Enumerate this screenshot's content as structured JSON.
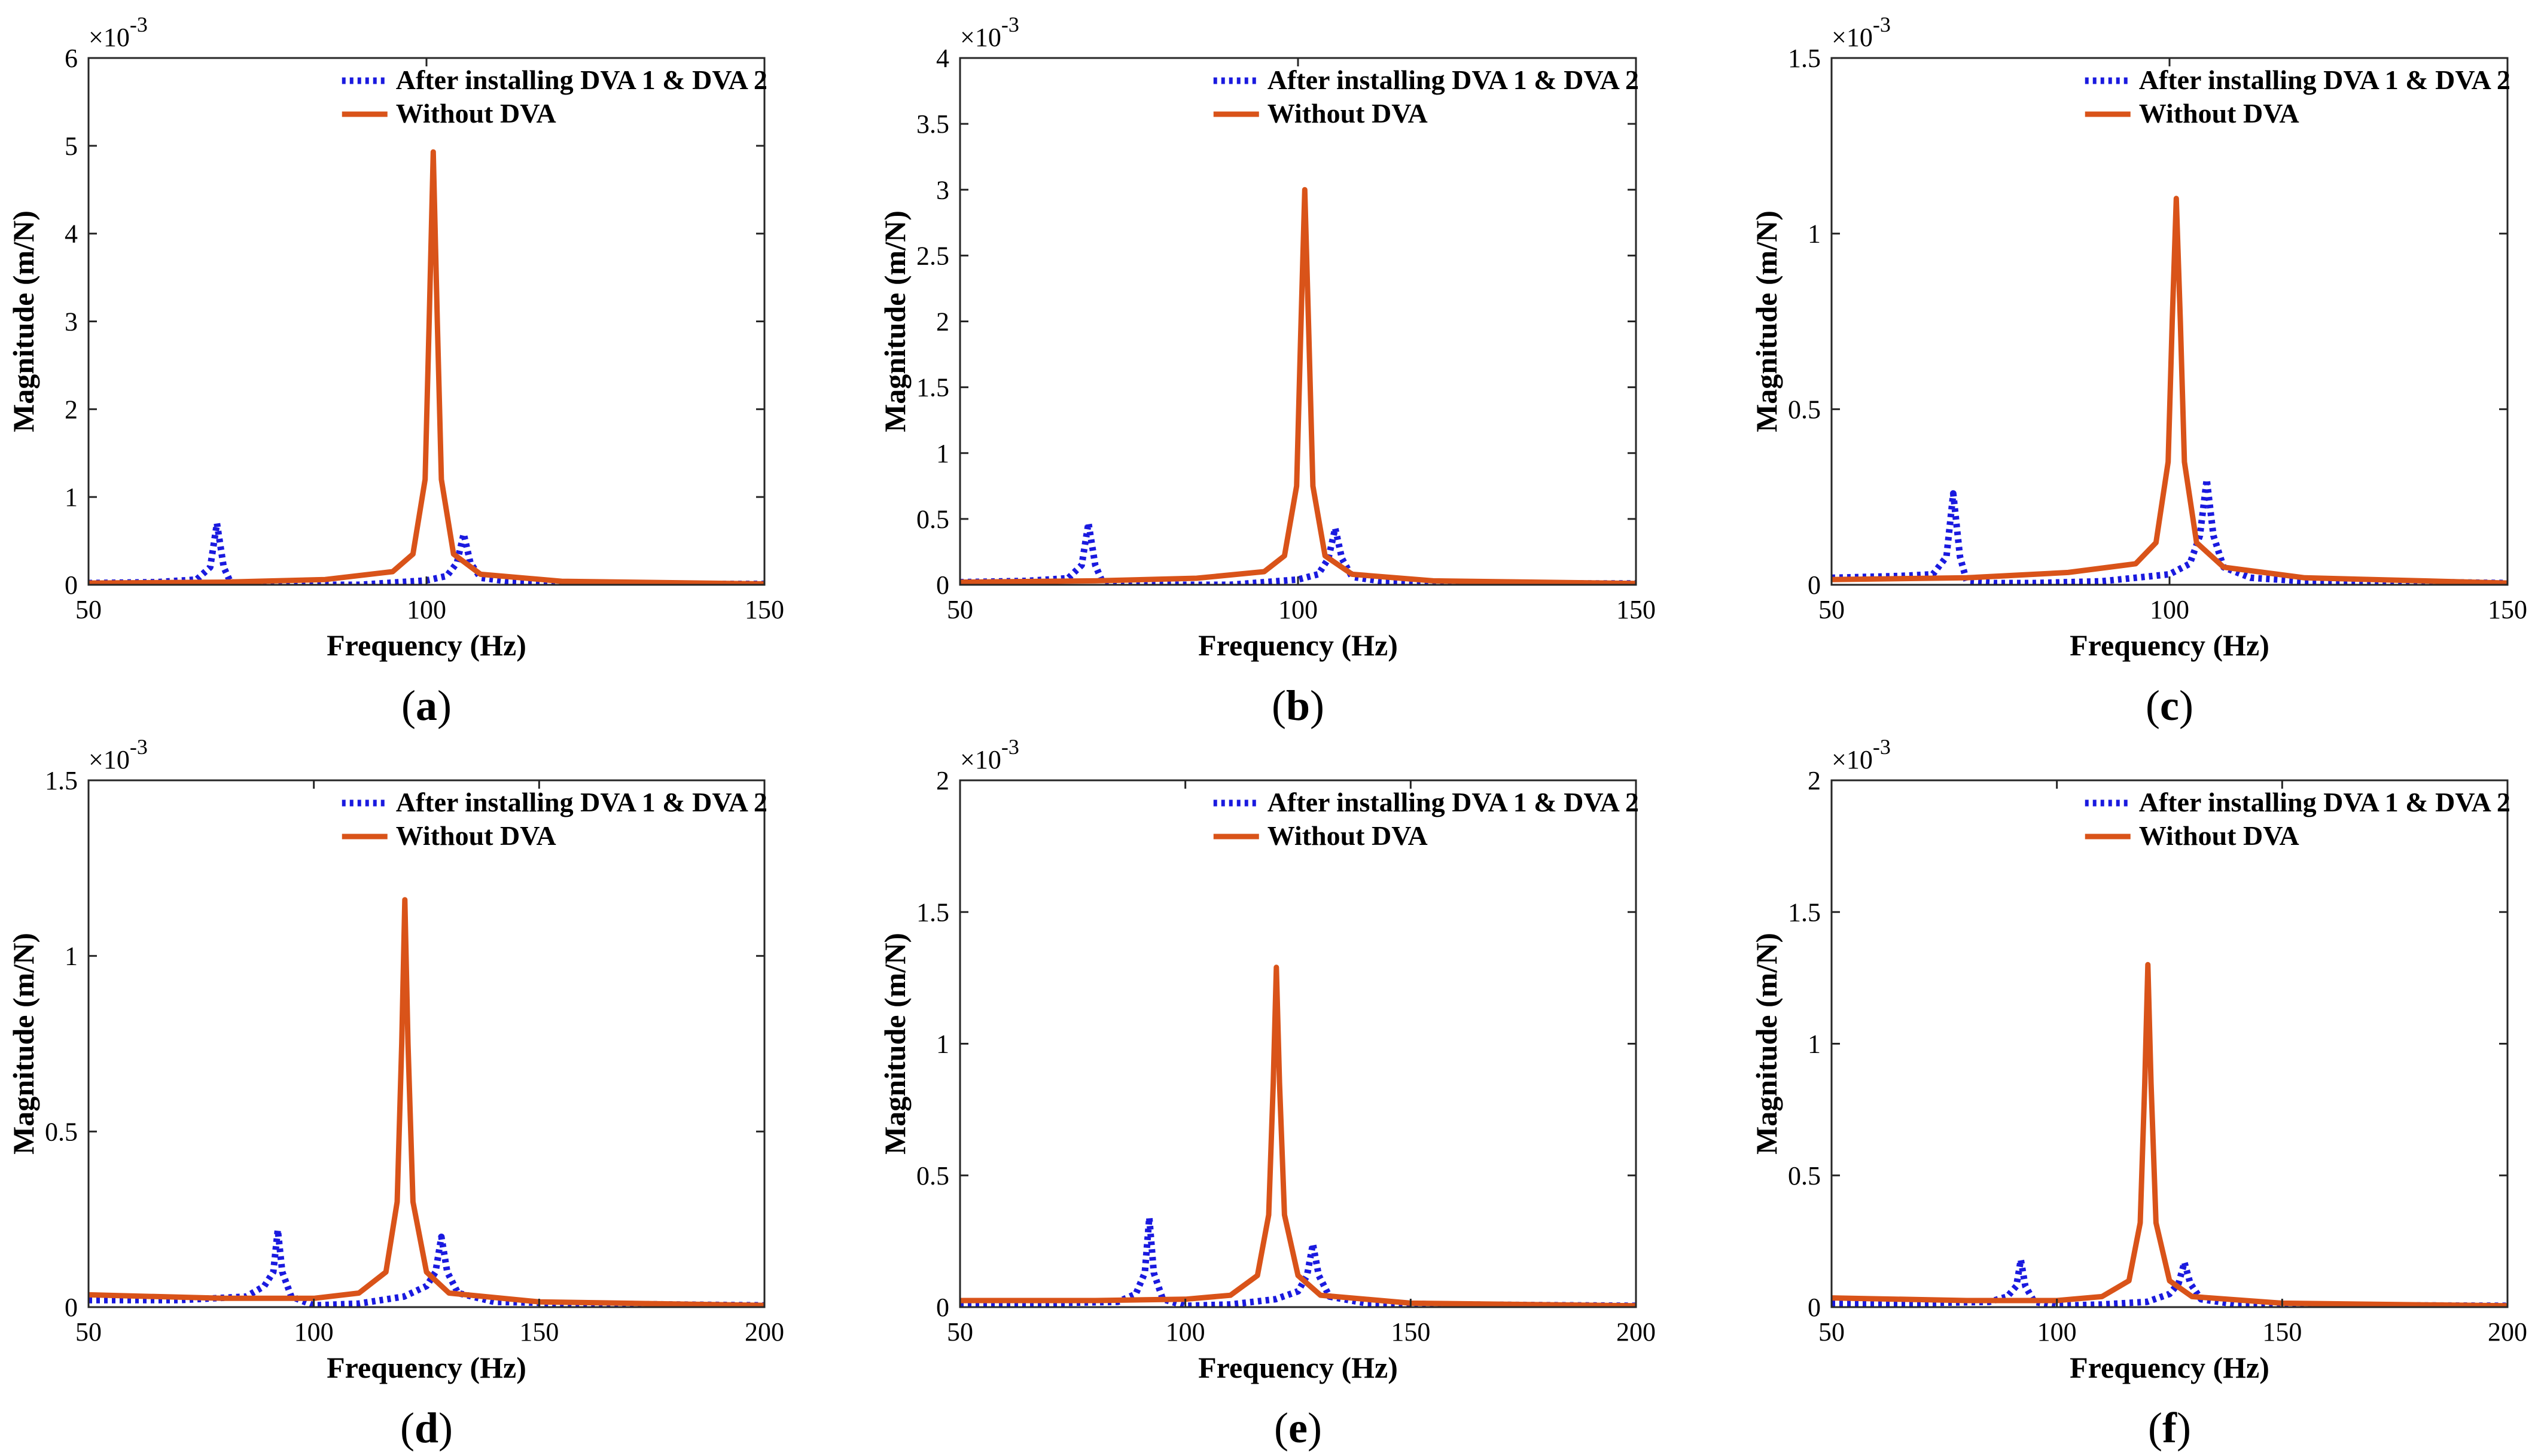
{
  "figure": {
    "series_colors": {
      "after": "#1a1adf",
      "without": "#d95319"
    }
  },
  "chart_data": [
    {
      "type": "line",
      "panel": "a",
      "caption": "(a)",
      "caption_letter": "a",
      "xlabel": "Frequency (Hz)",
      "ylabel": "Magnitude (m/N)",
      "exponent_label": "×10^-3",
      "exponent_base": "×10",
      "exponent_power": "-3",
      "xlim": [
        50,
        150
      ],
      "ylim": [
        0,
        6
      ],
      "xticks": [
        50,
        100,
        150
      ],
      "yticks": [
        0,
        1,
        2,
        3,
        4,
        5,
        6
      ],
      "ytick_labels": [
        "0",
        "1",
        "2",
        "3",
        "4",
        "5",
        "6"
      ],
      "legend": [
        "After installing DVA 1 & DVA 2",
        "Without DVA"
      ],
      "series": [
        {
          "name": "After installing DVA 1 & DVA 2",
          "style": "dotted",
          "x": [
            50,
            60,
            66,
            68,
            69,
            70,
            71,
            74,
            80,
            90,
            100,
            103,
            104.5,
            105.5,
            106.5,
            108,
            112,
            120,
            130,
            150
          ],
          "values": [
            0.02,
            0.03,
            0.06,
            0.2,
            0.7,
            0.2,
            0.03,
            0.0,
            0.0,
            0.0,
            0.05,
            0.1,
            0.25,
            0.58,
            0.25,
            0.08,
            0.04,
            0.02,
            0.01,
            0.01
          ]
        },
        {
          "name": "Without DVA",
          "style": "solid",
          "x": [
            50,
            70,
            85,
            95,
            98,
            99.8,
            100.4,
            101,
            101.6,
            102.2,
            104,
            108,
            120,
            150
          ],
          "values": [
            0.02,
            0.03,
            0.06,
            0.15,
            0.35,
            1.2,
            3.0,
            4.93,
            3.0,
            1.2,
            0.35,
            0.12,
            0.04,
            0.01
          ]
        }
      ]
    },
    {
      "type": "line",
      "panel": "b",
      "caption": "(b)",
      "caption_letter": "b",
      "xlabel": "Frequency (Hz)",
      "ylabel": "Magnitude (m/N)",
      "exponent_label": "×10^-3",
      "exponent_base": "×10",
      "exponent_power": "-3",
      "xlim": [
        50,
        150
      ],
      "ylim": [
        0,
        4
      ],
      "xticks": [
        50,
        100,
        150
      ],
      "yticks": [
        0,
        0.5,
        1,
        1.5,
        2,
        2.5,
        3,
        3.5,
        4
      ],
      "ytick_labels": [
        "0",
        "0.5",
        "1",
        "1.5",
        "2",
        "2.5",
        "3",
        "3.5",
        "4"
      ],
      "legend": [
        "After installing DVA 1 & DVA 2",
        "Without DVA"
      ],
      "series": [
        {
          "name": "After installing DVA 1 & DVA 2",
          "style": "dotted",
          "x": [
            50,
            60,
            66,
            68,
            69,
            70,
            71,
            74,
            80,
            90,
            100,
            103,
            104.5,
            105.5,
            106.5,
            108,
            112,
            120,
            130,
            150
          ],
          "values": [
            0.02,
            0.03,
            0.05,
            0.15,
            0.47,
            0.15,
            0.03,
            0.0,
            0.0,
            0.0,
            0.04,
            0.08,
            0.2,
            0.43,
            0.2,
            0.06,
            0.03,
            0.02,
            0.01,
            0.01
          ]
        },
        {
          "name": "Without DVA",
          "style": "solid",
          "x": [
            50,
            70,
            85,
            95,
            98,
            99.8,
            100.4,
            101,
            101.6,
            102.2,
            104,
            108,
            120,
            150
          ],
          "values": [
            0.02,
            0.03,
            0.05,
            0.1,
            0.22,
            0.75,
            1.9,
            3.0,
            1.9,
            0.75,
            0.22,
            0.08,
            0.03,
            0.01
          ]
        }
      ]
    },
    {
      "type": "line",
      "panel": "c",
      "caption": "(c)",
      "caption_letter": "c",
      "xlabel": "Frequency (Hz)",
      "ylabel": "Magnitude (m/N)",
      "exponent_label": "×10^-3",
      "exponent_base": "×10",
      "exponent_power": "-3",
      "xlim": [
        50,
        150
      ],
      "ylim": [
        0,
        1.5
      ],
      "xticks": [
        50,
        100,
        150
      ],
      "yticks": [
        0,
        0.5,
        1,
        1.5
      ],
      "ytick_labels": [
        "0",
        "0.5",
        "1",
        "1.5"
      ],
      "legend": [
        "After installing DVA 1 & DVA 2",
        "Without DVA"
      ],
      "series": [
        {
          "name": "After installing DVA 1 & DVA 2",
          "style": "dotted",
          "x": [
            50,
            60,
            65,
            67,
            68,
            69,
            70,
            74,
            80,
            90,
            100,
            103,
            104.5,
            105.5,
            106.5,
            108,
            112,
            120,
            130,
            150
          ],
          "values": [
            0.02,
            0.025,
            0.03,
            0.08,
            0.26,
            0.08,
            0.01,
            0.005,
            0.005,
            0.01,
            0.03,
            0.06,
            0.14,
            0.3,
            0.14,
            0.05,
            0.02,
            0.01,
            0.01,
            0.005
          ]
        },
        {
          "name": "Without DVA",
          "style": "solid",
          "x": [
            50,
            70,
            85,
            95,
            98,
            99.8,
            100.4,
            101,
            101.6,
            102.2,
            104,
            108,
            120,
            150
          ],
          "values": [
            0.015,
            0.02,
            0.035,
            0.06,
            0.12,
            0.35,
            0.75,
            1.1,
            0.75,
            0.35,
            0.12,
            0.05,
            0.02,
            0.005
          ]
        }
      ]
    },
    {
      "type": "line",
      "panel": "d",
      "caption": "(d)",
      "caption_letter": "d",
      "xlabel": "Frequency (Hz)",
      "ylabel": "Magnitude (m/N)",
      "exponent_label": "×10^-3",
      "exponent_base": "×10",
      "exponent_power": "-3",
      "xlim": [
        50,
        200
      ],
      "ylim": [
        0,
        1.5
      ],
      "xticks": [
        50,
        100,
        150,
        200
      ],
      "yticks": [
        0,
        0.5,
        1,
        1.5
      ],
      "ytick_labels": [
        "0",
        "0.5",
        "1",
        "1.5"
      ],
      "legend": [
        "After installing DVA 1 & DVA 2",
        "Without DVA"
      ],
      "series": [
        {
          "name": "After installing DVA 1 & DVA 2",
          "style": "dotted",
          "x": [
            50,
            70,
            85,
            89,
            91,
            92,
            93,
            95,
            100,
            110,
            120,
            125,
            127,
            128.3,
            129.6,
            132,
            140,
            160,
            200
          ],
          "values": [
            0.02,
            0.02,
            0.03,
            0.06,
            0.1,
            0.22,
            0.1,
            0.03,
            0.005,
            0.01,
            0.03,
            0.06,
            0.1,
            0.2,
            0.1,
            0.04,
            0.015,
            0.01,
            0.005
          ]
        },
        {
          "name": "Without DVA",
          "style": "solid",
          "x": [
            50,
            80,
            100,
            110,
            116,
            118.5,
            119.5,
            120.2,
            120.9,
            122,
            125,
            130,
            150,
            200
          ],
          "values": [
            0.035,
            0.025,
            0.025,
            0.04,
            0.1,
            0.3,
            0.75,
            1.16,
            0.75,
            0.3,
            0.1,
            0.04,
            0.015,
            0.005
          ]
        }
      ]
    },
    {
      "type": "line",
      "panel": "e",
      "caption": "(e)",
      "caption_letter": "e",
      "xlabel": "Frequency (Hz)",
      "ylabel": "Magnitude (m/N)",
      "exponent_label": "×10^-3",
      "exponent_base": "×10",
      "exponent_power": "-3",
      "xlim": [
        50,
        200
      ],
      "ylim": [
        0,
        2
      ],
      "xticks": [
        50,
        100,
        150,
        200
      ],
      "yticks": [
        0,
        0.5,
        1,
        1.5,
        2
      ],
      "ytick_labels": [
        "0",
        "0.5",
        "1",
        "1.5",
        "2"
      ],
      "legend": [
        "After installing DVA 1 & DVA 2",
        "Without DVA"
      ],
      "series": [
        {
          "name": "After installing DVA 1 & DVA 2",
          "style": "dotted",
          "x": [
            50,
            70,
            85,
            89,
            91,
            92,
            93,
            95,
            100,
            110,
            120,
            125,
            127,
            128.3,
            129.6,
            132,
            140,
            160,
            200
          ],
          "values": [
            0.015,
            0.015,
            0.02,
            0.05,
            0.13,
            0.34,
            0.13,
            0.03,
            0.005,
            0.01,
            0.03,
            0.06,
            0.12,
            0.24,
            0.12,
            0.04,
            0.015,
            0.01,
            0.005
          ]
        },
        {
          "name": "Without DVA",
          "style": "solid",
          "x": [
            50,
            80,
            100,
            110,
            116,
            118.5,
            119.5,
            120.2,
            120.9,
            122,
            125,
            130,
            150,
            200
          ],
          "values": [
            0.025,
            0.025,
            0.03,
            0.045,
            0.12,
            0.35,
            0.85,
            1.29,
            0.85,
            0.35,
            0.12,
            0.045,
            0.015,
            0.005
          ]
        }
      ]
    },
    {
      "type": "line",
      "panel": "f",
      "caption": "(f)",
      "caption_letter": "f",
      "xlabel": "Frequency (Hz)",
      "ylabel": "Magnitude (m/N)",
      "exponent_label": "×10^-3",
      "exponent_base": "×10",
      "exponent_power": "-3",
      "xlim": [
        50,
        200
      ],
      "ylim": [
        0,
        2
      ],
      "xticks": [
        50,
        100,
        150,
        200
      ],
      "yticks": [
        0,
        0.5,
        1,
        1.5,
        2
      ],
      "ytick_labels": [
        "0",
        "0.5",
        "1",
        "1.5",
        "2"
      ],
      "legend": [
        "After installing DVA 1 & DVA 2",
        "Without DVA"
      ],
      "series": [
        {
          "name": "After installing DVA 1 & DVA 2",
          "style": "dotted",
          "x": [
            50,
            70,
            85,
            89,
            91,
            92,
            93,
            95,
            100,
            110,
            120,
            125,
            127,
            128.3,
            129.6,
            132,
            140,
            160,
            200
          ],
          "values": [
            0.015,
            0.015,
            0.02,
            0.04,
            0.08,
            0.18,
            0.08,
            0.02,
            0.005,
            0.01,
            0.02,
            0.05,
            0.09,
            0.17,
            0.09,
            0.03,
            0.01,
            0.008,
            0.005
          ]
        },
        {
          "name": "Without DVA",
          "style": "solid",
          "x": [
            50,
            80,
            100,
            110,
            116,
            118.5,
            119.5,
            120.2,
            120.9,
            122,
            125,
            130,
            150,
            200
          ],
          "values": [
            0.035,
            0.025,
            0.025,
            0.04,
            0.1,
            0.32,
            0.85,
            1.3,
            0.85,
            0.32,
            0.1,
            0.04,
            0.015,
            0.005
          ]
        }
      ]
    }
  ]
}
